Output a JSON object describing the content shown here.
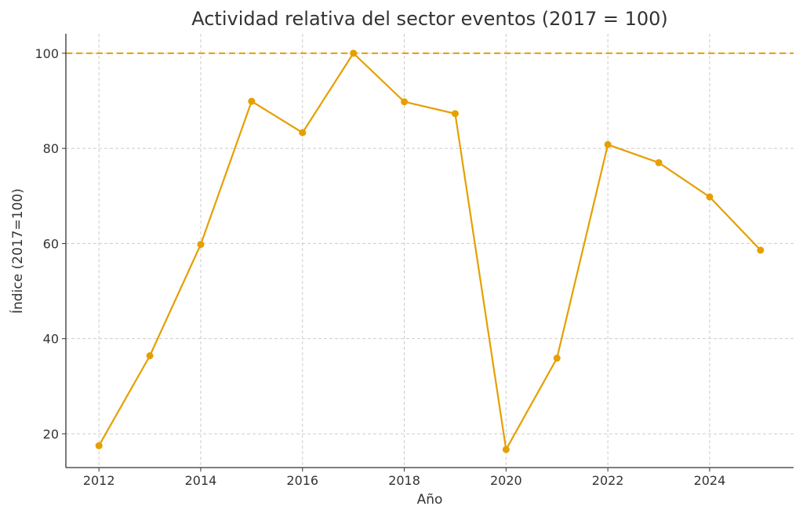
{
  "chart_data": {
    "type": "line",
    "title": "Actividad relativa del sector eventos (2017 = 100)",
    "xlabel": "Año",
    "ylabel": "Índice (2017=100)",
    "x": [
      2012,
      2013,
      2014,
      2015,
      2016,
      2017,
      2018,
      2019,
      2020,
      2021,
      2022,
      2023,
      2024,
      2025
    ],
    "series": [
      {
        "name": "Índice",
        "color": "#E69F00",
        "marker": "circle",
        "values": [
          17.5,
          36.4,
          59.8,
          89.9,
          83.3,
          100.0,
          89.8,
          87.3,
          16.7,
          35.9,
          80.8,
          77.0,
          69.8,
          58.6
        ]
      }
    ],
    "reference_line": {
      "y": 100,
      "style": "dashed",
      "color": "#E69F00"
    },
    "xticks": [
      "2012",
      "2014",
      "2016",
      "2018",
      "2020",
      "2022",
      "2024"
    ],
    "yticks": [
      "20",
      "40",
      "60",
      "80",
      "100"
    ],
    "xlim": [
      2011.35,
      2025.65
    ],
    "ylim": [
      12.9,
      104.1
    ],
    "grid": true,
    "legend": null
  }
}
